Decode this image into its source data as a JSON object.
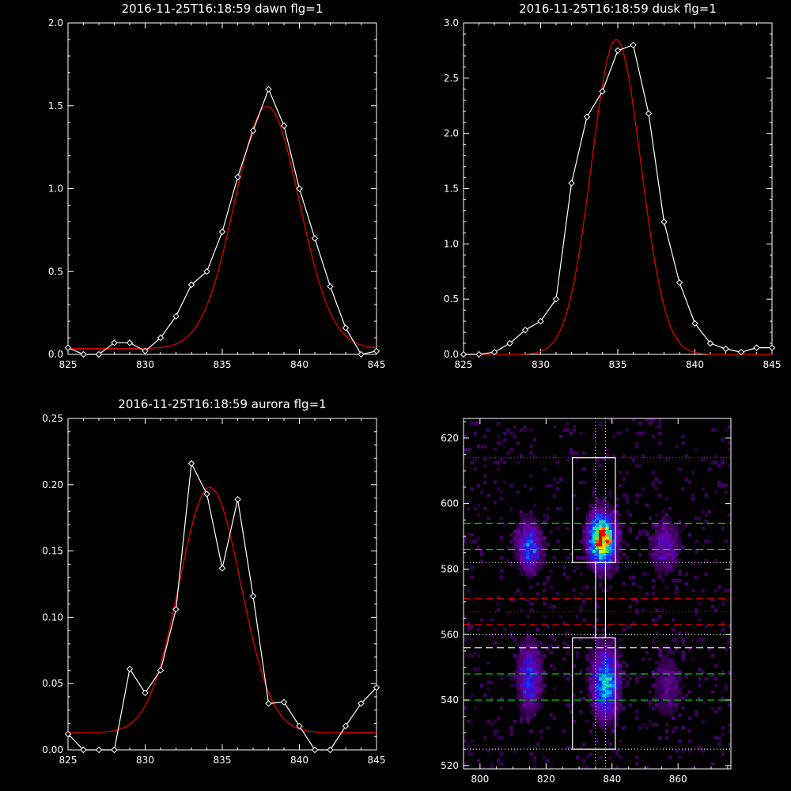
{
  "chart_data": [
    {
      "id": "dawn",
      "type": "line",
      "title": "2016-11-25T16:18:59 dawn flg=1",
      "xlim": [
        825,
        845
      ],
      "ylim": [
        0,
        2.0
      ],
      "xticks": [
        825,
        830,
        835,
        840,
        845
      ],
      "yticks": [
        0.0,
        0.5,
        1.0,
        1.5,
        2.0
      ],
      "ytick_labels": [
        "0.0",
        "0.5",
        "1.0",
        "1.5",
        "2.0"
      ],
      "colors": {
        "data": "#ffffff",
        "fit": "#dd0000"
      },
      "series": [
        {
          "x": [
            825,
            826,
            827,
            828,
            829,
            830,
            831,
            832,
            833,
            834,
            835,
            836,
            837,
            838,
            839,
            840,
            841,
            842,
            843,
            844,
            845
          ],
          "values": [
            0.04,
            0.0,
            0.0,
            0.07,
            0.07,
            0.02,
            0.1,
            0.23,
            0.42,
            0.5,
            0.74,
            1.07,
            1.35,
            1.6,
            1.38,
            1.0,
            0.7,
            0.41,
            0.16,
            0.0,
            0.02
          ]
        }
      ],
      "fit": {
        "amplitude": 1.46,
        "center": 837.9,
        "sigma": 2.1,
        "offset": 0.035
      }
    },
    {
      "id": "dusk",
      "type": "line",
      "title": "2016-11-25T16:18:59 dusk flg=1",
      "xlim": [
        825,
        845
      ],
      "ylim": [
        0,
        3.0
      ],
      "xticks": [
        825,
        830,
        835,
        840,
        845
      ],
      "yticks": [
        0.0,
        0.5,
        1.0,
        1.5,
        2.0,
        2.5,
        3.0
      ],
      "ytick_labels": [
        "0.0",
        "0.5",
        "1.0",
        "1.5",
        "2.0",
        "2.5",
        "3.0"
      ],
      "colors": {
        "data": "#ffffff",
        "fit": "#dd0000"
      },
      "series": [
        {
          "x": [
            825,
            826,
            827,
            828,
            829,
            830,
            831,
            832,
            833,
            834,
            835,
            836,
            837,
            838,
            839,
            840,
            841,
            842,
            843,
            844,
            845
          ],
          "values": [
            0.0,
            0.0,
            0.02,
            0.1,
            0.22,
            0.3,
            0.5,
            1.55,
            2.15,
            2.38,
            2.75,
            2.8,
            2.18,
            1.2,
            0.65,
            0.28,
            0.1,
            0.05,
            0.02,
            0.06,
            0.06
          ]
        }
      ],
      "fit": {
        "amplitude": 2.85,
        "center": 834.9,
        "sigma": 1.6,
        "offset": 0.0
      }
    },
    {
      "id": "aurora",
      "type": "line",
      "title": "2016-11-25T16:18:59 aurora flg=1",
      "xlim": [
        825,
        845
      ],
      "ylim": [
        0,
        0.25
      ],
      "xticks": [
        825,
        830,
        835,
        840,
        845
      ],
      "yticks": [
        0.0,
        0.05,
        0.1,
        0.15,
        0.2,
        0.25
      ],
      "ytick_labels": [
        "0.00",
        "0.05",
        "0.10",
        "0.15",
        "0.20",
        "0.25"
      ],
      "colors": {
        "data": "#ffffff",
        "fit": "#dd0000"
      },
      "series": [
        {
          "x": [
            825,
            826,
            827,
            828,
            829,
            830,
            831,
            832,
            833,
            834,
            835,
            836,
            837,
            838,
            839,
            840,
            841,
            842,
            843,
            844,
            845
          ],
          "values": [
            0.012,
            -0.002,
            0.0,
            -0.002,
            0.061,
            0.043,
            0.06,
            0.106,
            0.216,
            0.193,
            0.137,
            0.189,
            0.116,
            0.035,
            0.036,
            0.018,
            0.0,
            -0.002,
            0.018,
            0.035,
            0.047
          ]
        }
      ],
      "fit": {
        "amplitude": 0.185,
        "center": 834.2,
        "sigma": 2.0,
        "offset": 0.013
      }
    },
    {
      "id": "image",
      "type": "heatmap",
      "xlim": [
        795,
        876
      ],
      "ylim": [
        519,
        626
      ],
      "xticks": [
        800,
        820,
        840,
        860
      ],
      "yticks": [
        520,
        540,
        560,
        580,
        600,
        620
      ],
      "blobs": [
        {
          "x": 837,
          "y": 589,
          "sx": 2.6,
          "sy": 5.0,
          "amp": 1.0
        },
        {
          "x": 838,
          "y": 545,
          "sx": 2.6,
          "sy": 7.0,
          "amp": 0.55
        },
        {
          "x": 815,
          "y": 587,
          "sx": 2.4,
          "sy": 5.0,
          "amp": 0.42
        },
        {
          "x": 815,
          "y": 547,
          "sx": 2.4,
          "sy": 7.0,
          "amp": 0.35
        },
        {
          "x": 856,
          "y": 587,
          "sx": 3.0,
          "sy": 5.5,
          "amp": 0.22
        },
        {
          "x": 857,
          "y": 545,
          "sx": 3.0,
          "sy": 7.0,
          "amp": 0.15
        }
      ],
      "boxes": [
        {
          "x0": 828,
          "x1": 841,
          "y0": 582,
          "y1": 614
        },
        {
          "x0": 828,
          "x1": 841,
          "y0": 525,
          "y1": 559
        },
        {
          "x0": 835,
          "x1": 838,
          "y0": 559,
          "y1": 582
        }
      ],
      "hlines": [
        {
          "y": 594,
          "color": "#00dd00",
          "style": "dashed"
        },
        {
          "y": 586,
          "color": "#00dd00",
          "style": "dashed"
        },
        {
          "y": 571,
          "color": "#dd0000",
          "style": "dashed"
        },
        {
          "y": 563,
          "color": "#dd0000",
          "style": "dashed"
        },
        {
          "y": 556,
          "color": "#ffffff",
          "style": "dashed"
        },
        {
          "y": 548,
          "color": "#00dd00",
          "style": "dashed"
        },
        {
          "y": 540,
          "color": "#00dd00",
          "style": "dashed"
        },
        {
          "y": 614,
          "color": "#dd00dd",
          "style": "dotted"
        },
        {
          "y": 582,
          "color": "#ffffff",
          "style": "dotted"
        },
        {
          "y": 567,
          "color": "#dd0000",
          "style": "dotted"
        },
        {
          "y": 560,
          "color": "#ffffff",
          "style": "dotted"
        },
        {
          "y": 525,
          "color": "#ffffff",
          "style": "dotted"
        }
      ],
      "vlines": [
        {
          "x": 835,
          "color": "#ffffff",
          "style": "dotted"
        },
        {
          "x": 838,
          "color": "#ffffff",
          "style": "dotted"
        }
      ]
    }
  ]
}
